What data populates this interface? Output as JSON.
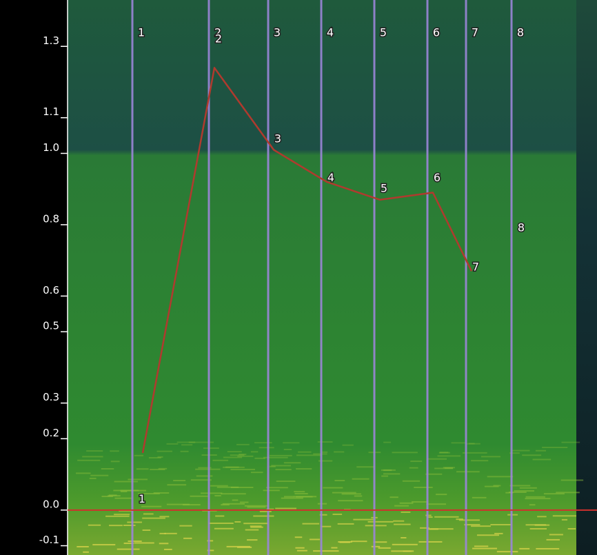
{
  "chart_data": {
    "type": "line",
    "categories": [
      "1",
      "2",
      "3",
      "4",
      "5",
      "6",
      "7",
      "8"
    ],
    "series": [
      {
        "color": "#b03a2e",
        "values": [
          0.16,
          1.24,
          1.01,
          0.92,
          0.87,
          0.89,
          0.67,
          null
        ]
      }
    ],
    "point_labels": {
      "labels": [
        "1",
        "2",
        "3",
        "4",
        "5",
        "6",
        "7",
        "8"
      ],
      "values": [
        0.03,
        1.32,
        1.04,
        0.93,
        0.9,
        0.93,
        0.68,
        0.79
      ]
    },
    "ylim": [
      -0.126,
      1.43
    ],
    "yticks": [
      1.3,
      1.1,
      {
        "value": 1,
        "label": "1.0"
      },
      0.8,
      0.6,
      0.5,
      0.3,
      0.2,
      {
        "value": 0,
        "label": "0.0"
      },
      -0.1
    ],
    "line_color": "#9b86d8",
    "zero_line_color": "#d0312d"
  }
}
